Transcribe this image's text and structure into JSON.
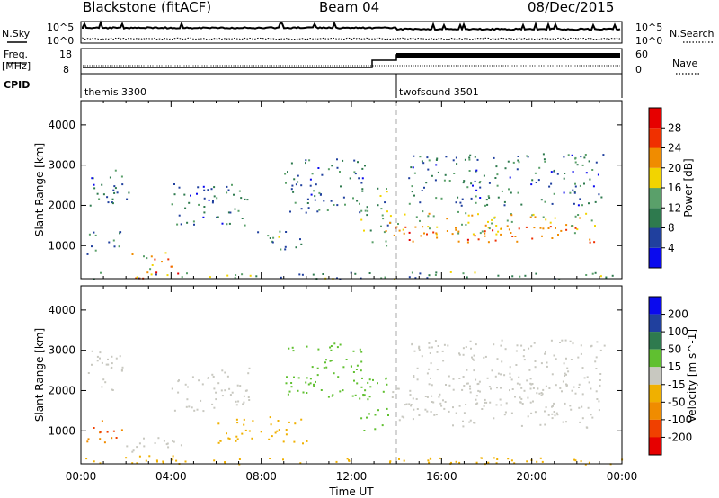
{
  "header": {
    "site": "Blackstone (fitACF)",
    "beam": "Beam 04",
    "date": "08/Dec/2015"
  },
  "top_panels": {
    "nsky_label": "N.Sky",
    "nsearch_label": "N.Search",
    "noise_tick_hi": "10^5",
    "noise_tick_lo": "10^0",
    "freq_label_1": "Freq.",
    "freq_label_2": "[MHz]",
    "freq_tick_hi": "18",
    "freq_tick_lo": "8",
    "nave_label": "Nave",
    "nave_tick_hi": "60",
    "nave_tick_lo": "0",
    "cpid_label": "CPID",
    "cpid_segments": [
      {
        "name": "themis 3300",
        "start_hour": 0
      },
      {
        "name": "twofsound 3501",
        "start_hour": 14
      }
    ]
  },
  "chart_data": [
    {
      "type": "heatmap",
      "title": "",
      "parameter": "Power",
      "ylabel": "Slant Range [km]",
      "xlabel": "",
      "ylim": [
        180,
        4600
      ],
      "yticks": [
        1000,
        2000,
        3000,
        4000
      ],
      "xlim_hours": [
        0,
        24
      ],
      "colorbar": {
        "label": "Power [dB]",
        "ticks": [
          4,
          8,
          12,
          16,
          20,
          24,
          28
        ],
        "range": [
          0,
          32
        ],
        "colors": [
          "#0a0aee",
          "#20409e",
          "#2e7a4e",
          "#5aa06a",
          "#f2d400",
          "#f08c00",
          "#f03000",
          "#e60000"
        ]
      },
      "regions": [
        {
          "t0": 0.2,
          "t1": 1.8,
          "r0": 800,
          "r1": 1400,
          "value": 10
        },
        {
          "t0": 0.3,
          "t1": 2.2,
          "r0": 2000,
          "r1": 3000,
          "value": 9
        },
        {
          "t0": 2.2,
          "t1": 4.2,
          "r0": 400,
          "r1": 850,
          "value": 20
        },
        {
          "t0": 2.4,
          "t1": 4.4,
          "r0": 180,
          "r1": 420,
          "value": 28
        },
        {
          "t0": 4.0,
          "t1": 7.5,
          "r0": 1500,
          "r1": 2600,
          "value": 9
        },
        {
          "t0": 7.5,
          "t1": 9.8,
          "r0": 900,
          "r1": 1400,
          "value": 12
        },
        {
          "t0": 9.0,
          "t1": 12.6,
          "r0": 1800,
          "r1": 3200,
          "value": 9
        },
        {
          "t0": 12.4,
          "t1": 13.6,
          "r0": 1000,
          "r1": 2500,
          "value": 12
        },
        {
          "t0": 13.6,
          "t1": 22.9,
          "r0": 1300,
          "r1": 1900,
          "value": 18
        },
        {
          "t0": 13.5,
          "t1": 23.0,
          "r0": 1100,
          "r1": 1500,
          "value": 24
        },
        {
          "t0": 14.5,
          "t1": 23.2,
          "r0": 2000,
          "r1": 3300,
          "value": 9
        },
        {
          "t0": 0.0,
          "t1": 24.0,
          "r0": 180,
          "r1": 360,
          "value": 12
        }
      ]
    },
    {
      "type": "heatmap",
      "title": "",
      "parameter": "Velocity",
      "ylabel": "Slant Range [km]",
      "xlabel": "Time UT",
      "ylim": [
        180,
        4600
      ],
      "yticks": [
        1000,
        2000,
        3000,
        4000
      ],
      "xlim_hours": [
        0,
        24
      ],
      "xticks": [
        "00:00",
        "04:00",
        "08:00",
        "12:00",
        "16:00",
        "20:00",
        "00:00"
      ],
      "colorbar": {
        "label": "Velocity [m s^-1]",
        "ticks": [
          -200,
          -100,
          -50,
          -15,
          15,
          50,
          100,
          200
        ],
        "colors": [
          "#e60000",
          "#f04000",
          "#f08c00",
          "#f0b000",
          "#c8c8c0",
          "#60c030",
          "#2e7a4e",
          "#20409e",
          "#0a0aee"
        ]
      },
      "regions": [
        {
          "t0": 0.2,
          "t1": 1.8,
          "r0": 700,
          "r1": 1300,
          "value": -100
        },
        {
          "t0": 0.3,
          "t1": 2.2,
          "r0": 2000,
          "r1": 3000,
          "value": 0
        },
        {
          "t0": 2.0,
          "t1": 4.6,
          "r0": 400,
          "r1": 850,
          "value": 0
        },
        {
          "t0": 2.0,
          "t1": 4.6,
          "r0": 180,
          "r1": 400,
          "value": -40
        },
        {
          "t0": 4.0,
          "t1": 7.5,
          "r0": 1500,
          "r1": 2600,
          "value": 0
        },
        {
          "t0": 6.0,
          "t1": 10.0,
          "r0": 700,
          "r1": 1400,
          "value": -40
        },
        {
          "t0": 9.0,
          "t1": 12.6,
          "r0": 1800,
          "r1": 3200,
          "value": 40
        },
        {
          "t0": 12.4,
          "t1": 13.6,
          "r0": 1000,
          "r1": 2500,
          "value": 40
        },
        {
          "t0": 13.6,
          "t1": 23.0,
          "r0": 1100,
          "r1": 2200,
          "value": 0
        },
        {
          "t0": 14.5,
          "t1": 23.2,
          "r0": 2000,
          "r1": 3300,
          "value": 0
        },
        {
          "t0": 0.0,
          "t1": 24.0,
          "r0": 180,
          "r1": 360,
          "value": -30
        }
      ]
    }
  ]
}
